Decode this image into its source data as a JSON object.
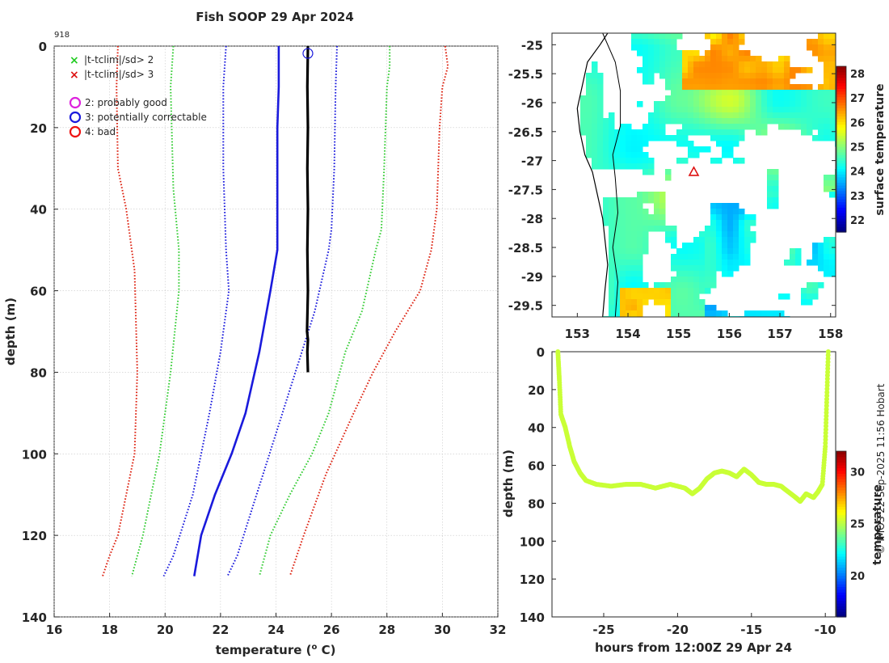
{
  "title": "Fish SOOP 29 Apr 2024",
  "station_id": "918",
  "credit": "© IMOS 22-Sep-2025 11:56 Hobart",
  "legend": {
    "x_items": [
      {
        "label": "|t-tclim|/sd> 2",
        "color": "#22cc22"
      },
      {
        "label": "|t-tclim|/sd> 3",
        "color": "#dd1111"
      }
    ],
    "flag_items": [
      {
        "label": "2: probably good",
        "color": "#dd22dd"
      },
      {
        "label": "3: potentially correctable",
        "color": "#1a1adc"
      },
      {
        "label": "4: bad",
        "color": "#ee1111"
      }
    ]
  },
  "chart_data": [
    {
      "type": "line",
      "id": "profile",
      "xlabel": "temperature (° C)",
      "ylabel": "depth (m)",
      "xlim": [
        16,
        32
      ],
      "ylim": [
        0,
        140
      ],
      "xticks": [
        16,
        18,
        20,
        22,
        24,
        26,
        28,
        30,
        32
      ],
      "yticks": [
        0,
        20,
        40,
        60,
        80,
        100,
        120,
        140
      ],
      "grid": true,
      "series": [
        {
          "name": "clim -3sd",
          "color": "#dd2211",
          "style": "dotted",
          "points": [
            [
              18.3,
              0
            ],
            [
              18.25,
              10
            ],
            [
              18.3,
              30
            ],
            [
              18.6,
              40
            ],
            [
              18.9,
              55
            ],
            [
              19.0,
              80
            ],
            [
              18.9,
              100
            ],
            [
              18.3,
              120
            ],
            [
              18.0,
              125
            ],
            [
              17.75,
              130
            ]
          ]
        },
        {
          "name": "clim -2sd",
          "color": "#33cc33",
          "style": "dotted",
          "points": [
            [
              20.3,
              0
            ],
            [
              20.2,
              10
            ],
            [
              20.3,
              35
            ],
            [
              20.5,
              50
            ],
            [
              20.5,
              60
            ],
            [
              20.2,
              80
            ],
            [
              19.8,
              100
            ],
            [
              19.2,
              120
            ],
            [
              18.8,
              130
            ]
          ]
        },
        {
          "name": "clim -1sd",
          "color": "#1a1adc",
          "style": "dotted",
          "points": [
            [
              22.2,
              0
            ],
            [
              22.1,
              10
            ],
            [
              22.1,
              30
            ],
            [
              22.2,
              50
            ],
            [
              22.3,
              60
            ],
            [
              22.0,
              75
            ],
            [
              21.6,
              90
            ],
            [
              21.0,
              110
            ],
            [
              20.3,
              125
            ],
            [
              19.95,
              130
            ]
          ]
        },
        {
          "name": "clim mean",
          "color": "#1a1adc",
          "style": "solid",
          "points": [
            [
              24.1,
              0
            ],
            [
              24.1,
              10
            ],
            [
              24.05,
              20
            ],
            [
              24.05,
              50
            ],
            [
              23.8,
              60
            ],
            [
              23.4,
              75
            ],
            [
              22.9,
              90
            ],
            [
              22.4,
              100
            ],
            [
              21.8,
              110
            ],
            [
              21.3,
              120
            ],
            [
              21.05,
              130
            ]
          ]
        },
        {
          "name": "clim +1sd",
          "color": "#1a1adc",
          "style": "dotted",
          "points": [
            [
              26.2,
              0
            ],
            [
              26.15,
              10
            ],
            [
              26.1,
              30
            ],
            [
              26.0,
              45
            ],
            [
              25.9,
              50
            ],
            [
              25.4,
              65
            ],
            [
              24.7,
              80
            ],
            [
              24.0,
              95
            ],
            [
              23.3,
              110
            ],
            [
              22.6,
              125
            ],
            [
              22.25,
              130
            ]
          ]
        },
        {
          "name": "clim +2sd",
          "color": "#33cc33",
          "style": "dotted",
          "points": [
            [
              28.1,
              0
            ],
            [
              28.1,
              5
            ],
            [
              28.0,
              10
            ],
            [
              27.9,
              30
            ],
            [
              27.8,
              45
            ],
            [
              27.6,
              50
            ],
            [
              27.1,
              65
            ],
            [
              26.5,
              75
            ],
            [
              25.9,
              90
            ],
            [
              25.3,
              100
            ],
            [
              24.5,
              110
            ],
            [
              23.8,
              120
            ],
            [
              23.4,
              130
            ]
          ]
        },
        {
          "name": "clim +3sd",
          "color": "#dd2211",
          "style": "dotted",
          "points": [
            [
              30.1,
              0
            ],
            [
              30.2,
              5
            ],
            [
              30.0,
              10
            ],
            [
              29.9,
              20
            ],
            [
              29.8,
              40
            ],
            [
              29.6,
              50
            ],
            [
              29.2,
              60
            ],
            [
              28.3,
              70
            ],
            [
              27.5,
              80
            ],
            [
              26.8,
              90
            ],
            [
              25.8,
              105
            ],
            [
              25.0,
              120
            ],
            [
              24.5,
              130
            ]
          ]
        },
        {
          "name": "measured",
          "color": "#000000",
          "style": "solid",
          "points": [
            [
              25.15,
              0
            ],
            [
              25.13,
              10
            ],
            [
              25.15,
              20
            ],
            [
              25.13,
              30
            ],
            [
              25.15,
              40
            ],
            [
              25.13,
              50
            ],
            [
              25.15,
              60
            ],
            [
              25.12,
              70
            ],
            [
              25.15,
              72
            ],
            [
              25.13,
              75
            ],
            [
              25.15,
              80
            ]
          ]
        }
      ],
      "flag_marker": {
        "temperature": 25.15,
        "depth": 1,
        "flag": "3"
      }
    },
    {
      "type": "heatmap",
      "id": "map",
      "xlim": [
        152.5,
        158.1
      ],
      "ylim": [
        -29.7,
        -24.8
      ],
      "xticks": [
        "153",
        "154",
        "155",
        "156",
        "157",
        "158"
      ],
      "yticks": [
        "-25",
        "-25.5",
        "-26",
        "-26.5",
        "-27",
        "-27.5",
        "-28",
        "-28.5",
        "-29",
        "-29.5"
      ],
      "colorbar_label": "surface temperature",
      "colorbar_range": [
        21.5,
        28.3
      ],
      "colorbar_ticks": [
        22,
        23,
        24,
        25,
        26,
        27,
        28
      ],
      "station": {
        "lon": 155.3,
        "lat": -27.2
      },
      "coastline": [
        [
          153.6,
          -24.8
        ],
        [
          153.45,
          -25.0
        ],
        [
          153.2,
          -25.3
        ],
        [
          153.1,
          -25.7
        ],
        [
          153.0,
          -26.1
        ],
        [
          153.05,
          -26.5
        ],
        [
          153.15,
          -26.9
        ],
        [
          153.3,
          -27.2
        ],
        [
          153.4,
          -27.6
        ],
        [
          153.5,
          -28.0
        ],
        [
          153.55,
          -28.4
        ],
        [
          153.6,
          -28.8
        ],
        [
          153.55,
          -29.2
        ],
        [
          153.5,
          -29.7
        ]
      ],
      "shelf_contour": [
        [
          153.5,
          -24.8
        ],
        [
          153.75,
          -25.3
        ],
        [
          153.85,
          -25.8
        ],
        [
          153.85,
          -26.4
        ],
        [
          153.7,
          -26.9
        ],
        [
          153.75,
          -27.3
        ],
        [
          153.8,
          -27.9
        ],
        [
          153.7,
          -28.5
        ],
        [
          153.8,
          -29.1
        ],
        [
          153.75,
          -29.7
        ]
      ]
    },
    {
      "type": "scatter",
      "id": "depth_time",
      "xlabel": "hours from 12:00Z 29 Apr 24",
      "ylabel": "depth (m)",
      "xlim": [
        -28.5,
        -9.3
      ],
      "ylim": [
        0,
        140
      ],
      "xticks": [
        -25,
        -20,
        -15,
        -10
      ],
      "yticks": [
        0,
        20,
        40,
        60,
        80,
        100,
        120,
        140
      ],
      "colorbar_label": "temperature",
      "colorbar_range": [
        16,
        32
      ],
      "colorbar_ticks": [
        20,
        25,
        30
      ],
      "point_temperature": 25.15,
      "track": [
        [
          -28.1,
          0
        ],
        [
          -28.0,
          15
        ],
        [
          -27.9,
          33
        ],
        [
          -27.6,
          40
        ],
        [
          -27.3,
          50
        ],
        [
          -27.0,
          58
        ],
        [
          -26.6,
          64
        ],
        [
          -26.2,
          68
        ],
        [
          -25.5,
          70
        ],
        [
          -24.5,
          71
        ],
        [
          -23.5,
          70
        ],
        [
          -22.5,
          70
        ],
        [
          -21.5,
          72
        ],
        [
          -20.5,
          70
        ],
        [
          -19.5,
          72
        ],
        [
          -19.0,
          75
        ],
        [
          -18.5,
          72
        ],
        [
          -18.0,
          67
        ],
        [
          -17.5,
          64
        ],
        [
          -17.0,
          63
        ],
        [
          -16.5,
          64
        ],
        [
          -16.0,
          66
        ],
        [
          -15.5,
          62
        ],
        [
          -15.0,
          65
        ],
        [
          -14.5,
          69
        ],
        [
          -14.0,
          70
        ],
        [
          -13.5,
          70
        ],
        [
          -13.0,
          71
        ],
        [
          -12.5,
          74
        ],
        [
          -12.0,
          77
        ],
        [
          -11.7,
          79
        ],
        [
          -11.3,
          75
        ],
        [
          -10.8,
          77
        ],
        [
          -10.5,
          74
        ],
        [
          -10.2,
          70
        ],
        [
          -10.0,
          50
        ],
        [
          -9.9,
          25
        ],
        [
          -9.8,
          0
        ]
      ]
    }
  ]
}
